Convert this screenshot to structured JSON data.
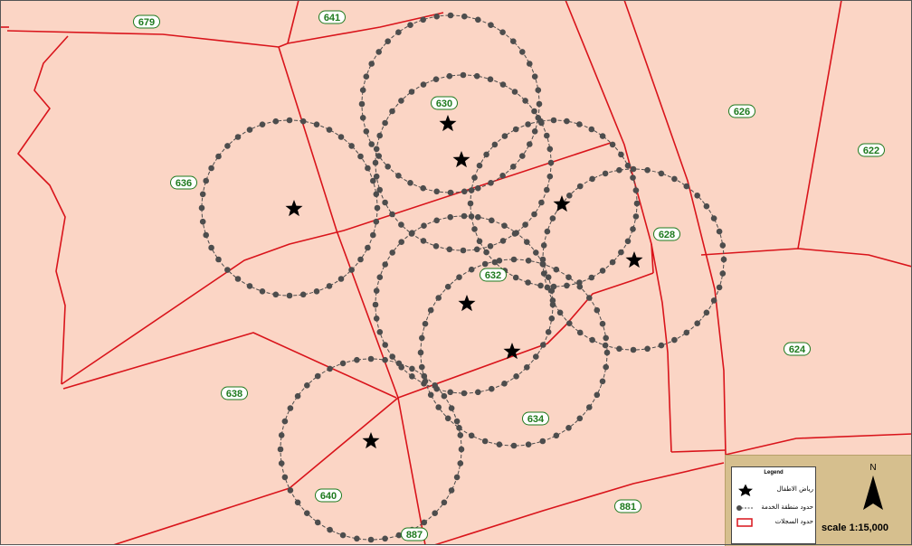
{
  "parcels": [
    "679",
    "641",
    "630",
    "626",
    "622",
    "636",
    "628",
    "632",
    "624",
    "638",
    "634",
    "640",
    "881",
    "887"
  ],
  "legend": {
    "title": "Legend",
    "items": [
      {
        "label": "رياض الاطفال",
        "symbol": "star-icon"
      },
      {
        "label": "حدود منطقة الخدمة",
        "symbol": "dotted-circle-icon"
      },
      {
        "label": "حدود السجلات",
        "symbol": "red-rect-icon"
      }
    ]
  },
  "north": "N",
  "scale_text": "scale 1:15,000",
  "colors": {
    "parcel_fill": "#fbd5c5",
    "boundary": "#d9141b",
    "service_ring": "#4d4d4d",
    "label": "#1e7a1e",
    "legend_panel": "#d6bf8e"
  }
}
